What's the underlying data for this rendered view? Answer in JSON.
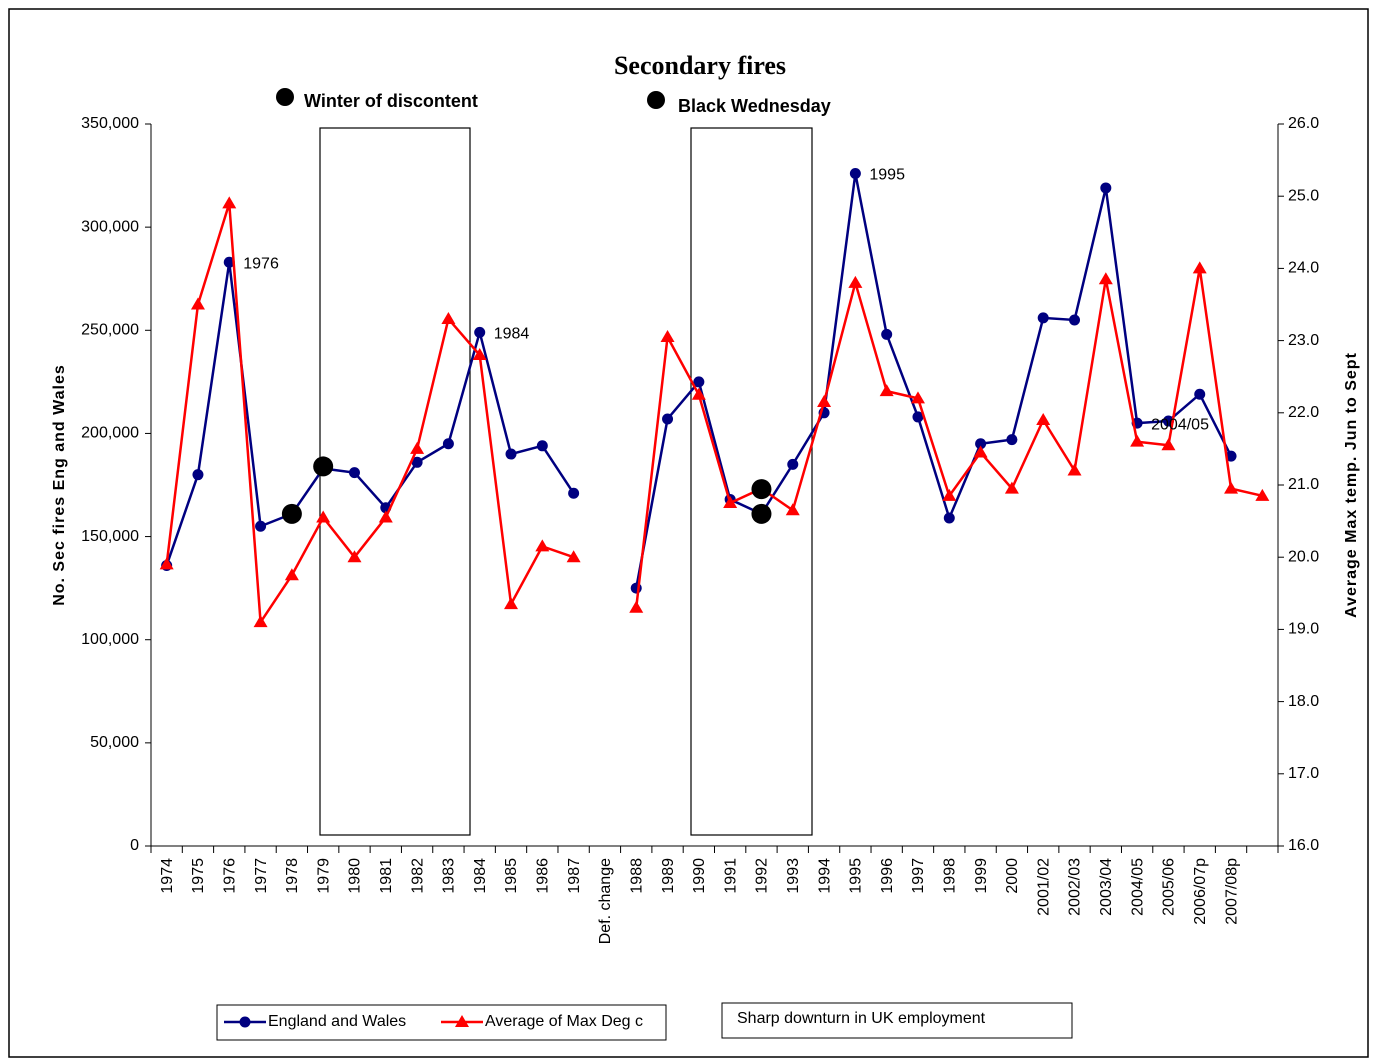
{
  "chart_data": {
    "type": "line",
    "title": "Secondary fires",
    "y_label": "No. Sec fires Eng and Wales",
    "y2_label": "Average Max temp. Jun to Sept",
    "categories": [
      "1974",
      "1975",
      "1976",
      "1977",
      "1978",
      "1979",
      "1980",
      "1981",
      "1982",
      "1983",
      "1984",
      "1985",
      "1986",
      "1987",
      "Def. change",
      "1988",
      "1989",
      "1990",
      "1991",
      "1992",
      "1993",
      "1994",
      "1995",
      "1996",
      "1997",
      "1998",
      "1999",
      "2000",
      "2001/02",
      "2002/03",
      "2003/04",
      "2004/05",
      "2005/06",
      "2006/07p",
      "2007/08p",
      null
    ],
    "series": [
      {
        "name": "England and Wales",
        "color": "#000080",
        "marker": "circle",
        "values": [
          136000,
          180000,
          283000,
          155000,
          161000,
          183000,
          181000,
          164000,
          186000,
          195000,
          249000,
          190000,
          194000,
          171000,
          null,
          125000,
          207000,
          225000,
          168000,
          161000,
          185000,
          210000,
          326000,
          248000,
          208000,
          159000,
          195000,
          197000,
          256000,
          255000,
          319000,
          205000,
          206000,
          219000,
          189000,
          null
        ]
      },
      {
        "name": "Average of Max Deg c",
        "color": "#ff0000",
        "marker": "triangle",
        "axis": "y2",
        "values": [
          19.9,
          23.5,
          24.9,
          19.1,
          19.75,
          20.55,
          20.0,
          20.55,
          21.5,
          23.3,
          22.8,
          19.35,
          20.15,
          20.0,
          null,
          19.3,
          23.05,
          22.25,
          20.75,
          20.95,
          20.65,
          22.15,
          23.8,
          22.3,
          22.2,
          20.85,
          21.45,
          20.95,
          21.9,
          21.2,
          23.85,
          21.6,
          21.55,
          24.0,
          20.95,
          20.85
        ]
      }
    ],
    "ylim": [
      0,
      350000
    ],
    "yticks": [
      0,
      {
        "value": 50000,
        "label": "50,000"
      },
      {
        "value": 100000,
        "label": "100,000"
      },
      {
        "value": 150000,
        "label": "150,000"
      },
      {
        "value": 200000,
        "label": "200,000"
      },
      {
        "value": 250000,
        "label": "250,000"
      },
      {
        "value": 300000,
        "label": "300,000"
      },
      {
        "value": 350000,
        "label": "350,000"
      }
    ],
    "y2lim": [
      16,
      26
    ],
    "y2ticks": [
      {
        "value": 16,
        "label": "16.0"
      },
      {
        "value": 17,
        "label": "17.0"
      },
      {
        "value": 18,
        "label": "18.0"
      },
      {
        "value": 19,
        "label": "19.0"
      },
      {
        "value": 20,
        "label": "20.0"
      },
      {
        "value": 21,
        "label": "21.0"
      },
      {
        "value": 22,
        "label": "22.0"
      },
      {
        "value": 23,
        "label": "23.0"
      },
      {
        "value": 24,
        "label": "24.0"
      },
      {
        "value": 25,
        "label": "25.0"
      },
      {
        "value": 26,
        "label": "26.0"
      }
    ],
    "point_labels": [
      {
        "text": "1976",
        "category": "1976"
      },
      {
        "text": "1984",
        "category": "1984"
      },
      {
        "text": "1995",
        "category": "1995"
      },
      {
        "text": "2004/05",
        "category": "2004/05"
      }
    ],
    "events": [
      "Winter of  discontent",
      "Black Wednesday"
    ],
    "event_markers": [
      {
        "x": "1978",
        "y": 161000
      },
      {
        "x": "1979",
        "y": 184000
      },
      {
        "x": "1992",
        "y": 161000
      },
      {
        "x": "1992",
        "y": 173000
      }
    ],
    "box_legend": "Sharp downturn in UK employment"
  }
}
